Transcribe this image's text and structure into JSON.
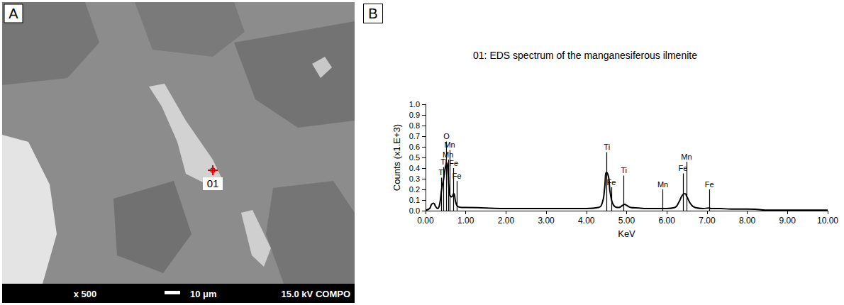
{
  "image_panel": {
    "letter": "A",
    "magnification": "x 500",
    "scale_bar": "10 μm",
    "settings": "15.0 kV COMPO",
    "point_label": "01"
  },
  "chart_data": {
    "panel_label": "B",
    "type": "line",
    "title": "01: EDS spectrum of the manganesiferous ilmenite",
    "x_label": "KeV",
    "y_label": "Counts (x1.E+3)",
    "color": "#000000",
    "x": [
      0,
      0.1,
      0.15,
      0.2,
      0.25,
      0.3,
      0.35,
      0.4,
      0.45,
      0.5,
      0.53,
      0.56,
      0.6,
      0.65,
      0.7,
      0.75,
      0.8,
      0.9,
      1.0,
      1.5,
      2,
      2.5,
      3,
      3.5,
      4,
      4.3,
      4.4,
      4.45,
      4.5,
      4.55,
      4.6,
      4.7,
      4.8,
      4.9,
      4.95,
      5.0,
      5.1,
      5.3,
      5.5,
      5.8,
      6.0,
      6.2,
      6.3,
      6.35,
      6.4,
      6.45,
      6.5,
      6.6,
      6.7,
      6.9,
      7.05,
      7.1,
      7.3,
      7.6,
      8,
      8.3,
      8.5,
      9,
      9.5,
      10
    ],
    "values": [
      0.005,
      0.02,
      0.06,
      0.07,
      0.04,
      0.02,
      0.06,
      0.2,
      0.3,
      0.42,
      0.45,
      0.35,
      0.15,
      0.13,
      0.16,
      0.08,
      0.04,
      0.03,
      0.03,
      0.025,
      0.02,
      0.02,
      0.02,
      0.02,
      0.02,
      0.03,
      0.08,
      0.2,
      0.36,
      0.32,
      0.15,
      0.04,
      0.03,
      0.05,
      0.06,
      0.05,
      0.03,
      0.025,
      0.02,
      0.02,
      0.02,
      0.03,
      0.08,
      0.12,
      0.15,
      0.16,
      0.13,
      0.06,
      0.03,
      0.02,
      0.025,
      0.02,
      0.02,
      0.015,
      0.015,
      0.01,
      0.005,
      0.005,
      0.005,
      0.005
    ],
    "peak_markers": [
      {
        "label": "Ti",
        "x": 0.4,
        "y": 0.31
      },
      {
        "label": "Ti",
        "x": 0.45,
        "y": 0.41
      },
      {
        "label": "O",
        "x": 0.52,
        "y": 0.65
      },
      {
        "label": "Mn",
        "x": 0.56,
        "y": 0.48
      },
      {
        "label": "Mn",
        "x": 0.6,
        "y": 0.57
      },
      {
        "label": "Fe",
        "x": 0.7,
        "y": 0.4
      },
      {
        "label": "Fe",
        "x": 0.78,
        "y": 0.28
      },
      {
        "label": "Ti",
        "x": 4.51,
        "y": 0.55
      },
      {
        "label": "Fe",
        "x": 4.62,
        "y": 0.22
      },
      {
        "label": "Ti",
        "x": 4.93,
        "y": 0.33
      },
      {
        "label": "Mn",
        "x": 5.9,
        "y": 0.2
      },
      {
        "label": "Fe",
        "x": 6.4,
        "y": 0.35
      },
      {
        "label": "Mn",
        "x": 6.49,
        "y": 0.46
      },
      {
        "label": "Fe",
        "x": 7.06,
        "y": 0.2
      }
    ],
    "xlim": [
      0,
      10
    ],
    "xticks": [
      {
        "value": 0,
        "label": "0.00"
      },
      {
        "value": 1,
        "label": "1.00"
      },
      {
        "value": 2,
        "label": "2.00"
      },
      {
        "value": 3,
        "label": "3.00"
      },
      {
        "value": 4,
        "label": "4.00"
      },
      {
        "value": 5,
        "label": "5.00"
      },
      {
        "value": 6,
        "label": "6.00"
      },
      {
        "value": 7,
        "label": "7.00"
      },
      {
        "value": 8,
        "label": "8.00"
      },
      {
        "value": 9,
        "label": "9.00"
      },
      {
        "value": 10,
        "label": "10.00"
      }
    ],
    "ylim": [
      0,
      1
    ],
    "yticks": [
      {
        "value": 0,
        "label": "0.0"
      },
      0.1,
      0.2,
      0.3,
      0.4,
      0.5,
      0.6,
      0.7,
      0.8,
      0.9,
      {
        "value": 1,
        "label": "1.0"
      }
    ],
    "grid": false
  }
}
